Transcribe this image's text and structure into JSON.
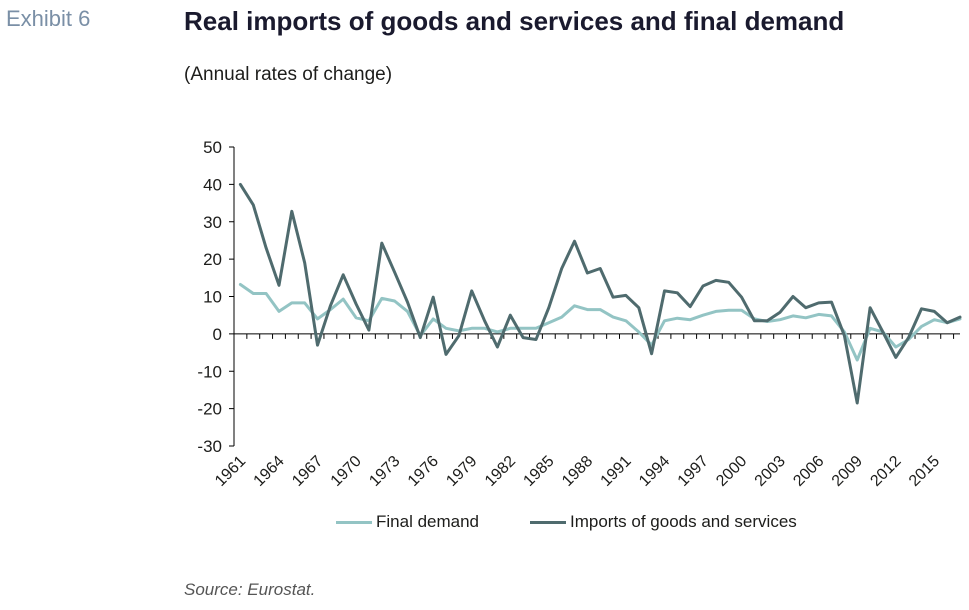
{
  "header": {
    "exhibit": "Exhibit 6",
    "title": "Real imports of goods and services and final demand",
    "subtitle": "(Annual rates of change)"
  },
  "footer": {
    "source": "Source: Eurostat."
  },
  "colors": {
    "final_demand": "#93c4c4",
    "imports": "#4f6b6e",
    "axis": "#000000"
  },
  "chart_data": {
    "type": "line",
    "title": "Real imports of goods and services and final demand",
    "subtitle": "(Annual rates of change)",
    "x": [
      1961,
      1962,
      1963,
      1964,
      1965,
      1966,
      1967,
      1968,
      1969,
      1970,
      1971,
      1972,
      1973,
      1974,
      1975,
      1976,
      1977,
      1978,
      1979,
      1980,
      1981,
      1982,
      1983,
      1984,
      1985,
      1986,
      1987,
      1988,
      1989,
      1990,
      1991,
      1992,
      1993,
      1994,
      1995,
      1996,
      1997,
      1998,
      1999,
      2000,
      2001,
      2002,
      2003,
      2004,
      2005,
      2006,
      2007,
      2008,
      2009,
      2010,
      2011,
      2012,
      2013,
      2014,
      2015,
      2016,
      2017
    ],
    "x_tick_labels": [
      "1961",
      "1964",
      "1967",
      "1970",
      "1973",
      "1976",
      "1979",
      "1982",
      "1985",
      "1988",
      "1991",
      "1994",
      "1997",
      "2000",
      "2003",
      "2006",
      "2009",
      "2012",
      "2015"
    ],
    "y_ticks": [
      "-30",
      "-20",
      "-10",
      "0",
      "10",
      "20",
      "30",
      "40",
      "50"
    ],
    "ylim": [
      -30,
      50
    ],
    "series": [
      {
        "name": "Final demand",
        "values": [
          13.2,
          10.8,
          10.8,
          6,
          8.3,
          8.3,
          4,
          6.5,
          9.3,
          4.3,
          3.5,
          9.5,
          8.8,
          6,
          -0.5,
          4,
          1.5,
          0.8,
          1.5,
          1.5,
          0.5,
          1.5,
          1.5,
          1.5,
          3,
          4.5,
          7.5,
          6.5,
          6.5,
          4.5,
          3.5,
          0.5,
          -3,
          3.5,
          4.2,
          3.8,
          5,
          6,
          6.3,
          6.3,
          4,
          3.3,
          3.8,
          4.8,
          4.3,
          5.2,
          4.8,
          0.5,
          -7,
          1.5,
          0.5,
          -3.5,
          -1.5,
          2,
          3.8,
          3,
          4
        ]
      },
      {
        "name": "Imports of goods and services",
        "values": [
          40,
          34.5,
          23,
          13,
          32.8,
          19,
          -3,
          7.5,
          15.8,
          8,
          1,
          24.3,
          16.5,
          8.5,
          -1,
          9.8,
          -5.5,
          -0.5,
          11.5,
          3.5,
          -3.5,
          5,
          -1,
          -1.5,
          7,
          17.5,
          24.8,
          16.3,
          17.5,
          9.8,
          10.3,
          7,
          -5.3,
          11.5,
          11,
          7.3,
          12.8,
          14.3,
          13.8,
          9.8,
          3.5,
          3.5,
          5.8,
          10,
          7,
          8.3,
          8.5,
          -0.5,
          -18.5,
          7,
          0.5,
          -6.3,
          -1,
          6.7,
          6,
          3,
          4.5
        ]
      }
    ],
    "grid": false,
    "legend_position": "bottom"
  }
}
